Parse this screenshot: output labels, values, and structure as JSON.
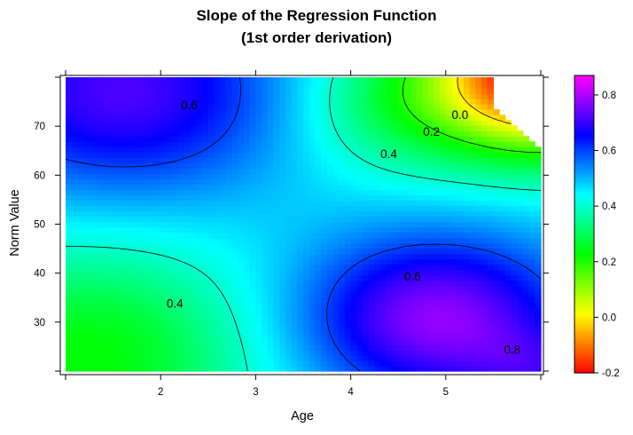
{
  "chart_data": {
    "type": "heatmap",
    "title": "Slope of the Regression Function",
    "subtitle": "(1st order derivation)",
    "xlabel": "Age",
    "ylabel": "Norm Value",
    "xlim": [
      1,
      6
    ],
    "ylim": [
      20,
      80
    ],
    "x_ticks": [
      2,
      3,
      4,
      5
    ],
    "y_ticks": [
      30,
      40,
      50,
      60,
      70
    ],
    "colorbar": {
      "range": [
        -0.2,
        0.87
      ],
      "ticks": [
        -0.2,
        0.0,
        0.2,
        0.4,
        0.6,
        0.8
      ],
      "tick_labels": [
        "-0.2",
        "0.0",
        "0.2",
        "0.4",
        "0.6",
        "0.8"
      ],
      "colors": [
        "#ff0000",
        "#ffff00",
        "#00ff00",
        "#00ffff",
        "#0000ff",
        "#ff00ff"
      ]
    },
    "contour_levels": [
      0.0,
      0.2,
      0.4,
      0.6,
      0.8
    ],
    "contour_labels": [
      {
        "text": "0.6",
        "x": 2.3,
        "y": 73.5
      },
      {
        "text": "0.4",
        "x": 2.15,
        "y": 33.0
      },
      {
        "text": "0.6",
        "x": 4.65,
        "y": 38.5
      },
      {
        "text": "0.4",
        "x": 4.4,
        "y": 63.5
      },
      {
        "text": "0.2",
        "x": 4.85,
        "y": 68.0
      },
      {
        "text": "0.0",
        "x": 5.15,
        "y": 71.5
      },
      {
        "text": "0.8",
        "x": 5.7,
        "y": 23.5
      }
    ]
  }
}
